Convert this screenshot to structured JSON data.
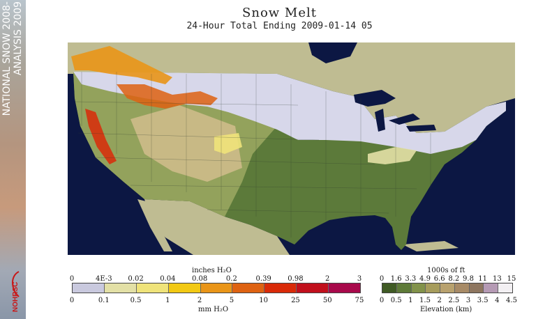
{
  "sidebar": {
    "line1": "NATIONAL SNOW 2008-",
    "line2": "ANALYSIS 2009",
    "logo_text": "NOHRSC"
  },
  "title": "Snow Melt",
  "subtitle": "24-Hour Total Ending 2009-01-14 05",
  "melt_legend": {
    "top_unit": "inches H₂O",
    "bottom_unit": "mm H₂O",
    "top_ticks": [
      "0",
      "4E-3",
      "0.02",
      "0.04",
      "0.08",
      "0.2",
      "0.39",
      "0.98",
      "2",
      "3"
    ],
    "bottom_ticks": [
      "0",
      "0.1",
      "0.5",
      "1",
      "2",
      "5",
      "10",
      "25",
      "50",
      "75"
    ],
    "colors": [
      "#c9c9de",
      "#e3e0a6",
      "#efe37a",
      "#f2c914",
      "#e99518",
      "#de6212",
      "#d92a08",
      "#c1101c",
      "#a8094b"
    ]
  },
  "elevation_legend": {
    "top_unit": "1000s of ft",
    "bottom_unit": "Elevation (km)",
    "top_ticks": [
      "0",
      "1.6",
      "3.3",
      "4.9",
      "6.6",
      "8.2",
      "9.8",
      "11",
      "13",
      "15"
    ],
    "bottom_ticks": [
      "0",
      "0.5",
      "1",
      "1.5",
      "2",
      "2.5",
      "3",
      "3.5",
      "4",
      "4.5"
    ],
    "colors": [
      "#3f5a24",
      "#5e7a38",
      "#82924a",
      "#a69c5c",
      "#b8a16e",
      "#a78a66",
      "#8e7660",
      "#b59ab4",
      "#f3f0f3"
    ]
  },
  "map_colors": {
    "ocean": "#0c1743",
    "land": "#bfbc92",
    "snow": "#d7d7ea",
    "lowland": "#5c7a3a",
    "mid": "#93a25c",
    "high": "#c8b985"
  }
}
